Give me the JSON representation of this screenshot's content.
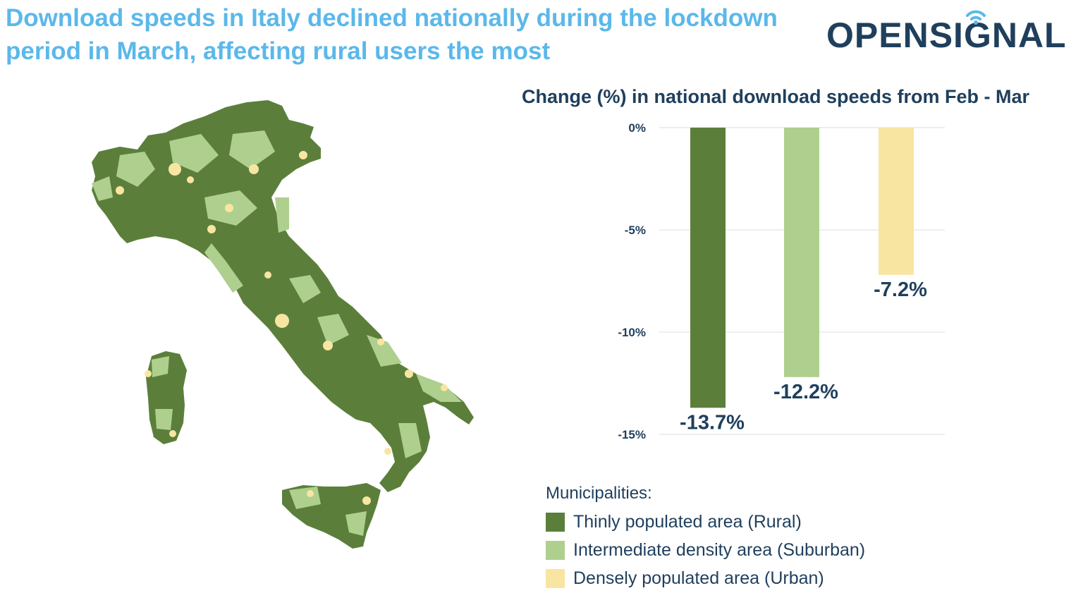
{
  "headline": "Download speeds in Italy declined nationally during the lockdown period in March, affecting rural users the most",
  "logo": {
    "text": "OPENSIGNAL",
    "icon": "wifi-signal-icon",
    "color": "#1f3f5c"
  },
  "map": {
    "icon": "italy-municipalities-map"
  },
  "chart_data": {
    "type": "bar",
    "title": "Change (%) in national download speeds from Feb - Mar",
    "categories": [
      "Thinly populated area (Rural)",
      "Intermediate density area (Suburban)",
      "Densely populated area (Urban)"
    ],
    "values": [
      -13.7,
      -12.2,
      -7.2
    ],
    "value_labels": [
      "-13.7%",
      "-12.2%",
      "-7.2%"
    ],
    "colors": [
      "#5b7f3b",
      "#afcf8f",
      "#f9e5a2"
    ],
    "ylim": [
      -15,
      0
    ],
    "yticks": [
      0,
      -5,
      -10,
      -15
    ],
    "ytick_labels": [
      "0%",
      "-5%",
      "-10%",
      "-15%"
    ],
    "grid": true,
    "xlabel": "",
    "ylabel": ""
  },
  "legend": {
    "title": "Municipalities:",
    "items": [
      {
        "label": "Thinly populated area (Rural)",
        "color": "#5b7f3b"
      },
      {
        "label": "Intermediate density area (Suburban)",
        "color": "#afcf8f"
      },
      {
        "label": "Densely populated area (Urban)",
        "color": "#f9e5a2"
      }
    ]
  }
}
